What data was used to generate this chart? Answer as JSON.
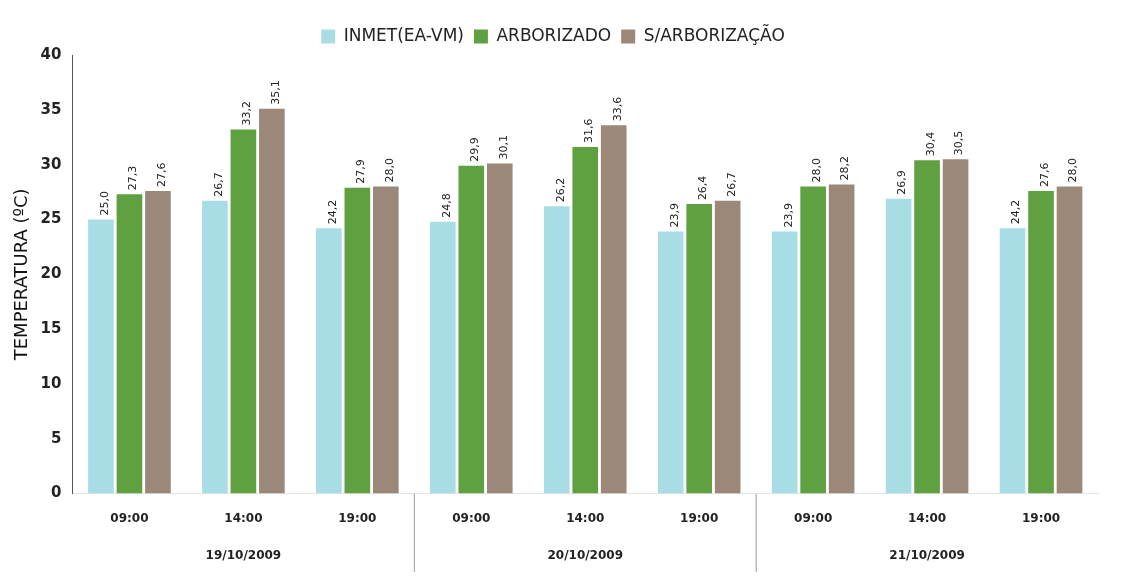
{
  "chart_data": {
    "type": "bar",
    "ylabel": "TEMPERATURA (ºC)",
    "categories": [
      "09:00",
      "14:00",
      "19:00",
      "09:00",
      "14:00",
      "19:00",
      "09:00",
      "14:00",
      "19:00"
    ],
    "annotations": [
      "19/10/2009",
      "20/10/2009",
      "21/10/2009"
    ],
    "series": [
      {
        "name": "INMET(EA-VM)",
        "color": "#a8dde6",
        "values": [
          25.0,
          26.7,
          24.2,
          24.8,
          26.2,
          23.9,
          23.9,
          26.9,
          24.2
        ],
        "value_labels": [
          "25,0",
          "26,7",
          "24,2",
          "24,8",
          "26,2",
          "23,9",
          "23,9",
          "26,9",
          "24,2"
        ]
      },
      {
        "name": "ARBORIZADO",
        "color": "#5fa040",
        "values": [
          27.3,
          33.2,
          27.9,
          29.9,
          31.6,
          26.4,
          28.0,
          30.4,
          27.6
        ],
        "value_labels": [
          "27,3",
          "33,2",
          "27,9",
          "29,9",
          "31,6",
          "26,4",
          "28,0",
          "30,4",
          "27,6"
        ]
      },
      {
        "name": "S/ARBORIZAÇÃO",
        "color": "#9c8878",
        "values": [
          27.6,
          35.1,
          28.0,
          30.1,
          33.6,
          26.7,
          28.2,
          30.5,
          28.0
        ],
        "value_labels": [
          "27,6",
          "35,1",
          "28,0",
          "30,1",
          "33,6",
          "26,7",
          "28,2",
          "30,5",
          "28,0"
        ]
      }
    ],
    "ylim": [
      0,
      40
    ],
    "yticks": [
      0,
      5,
      10,
      15,
      20,
      25,
      30,
      35,
      40
    ],
    "grid": false,
    "legend": "top"
  }
}
